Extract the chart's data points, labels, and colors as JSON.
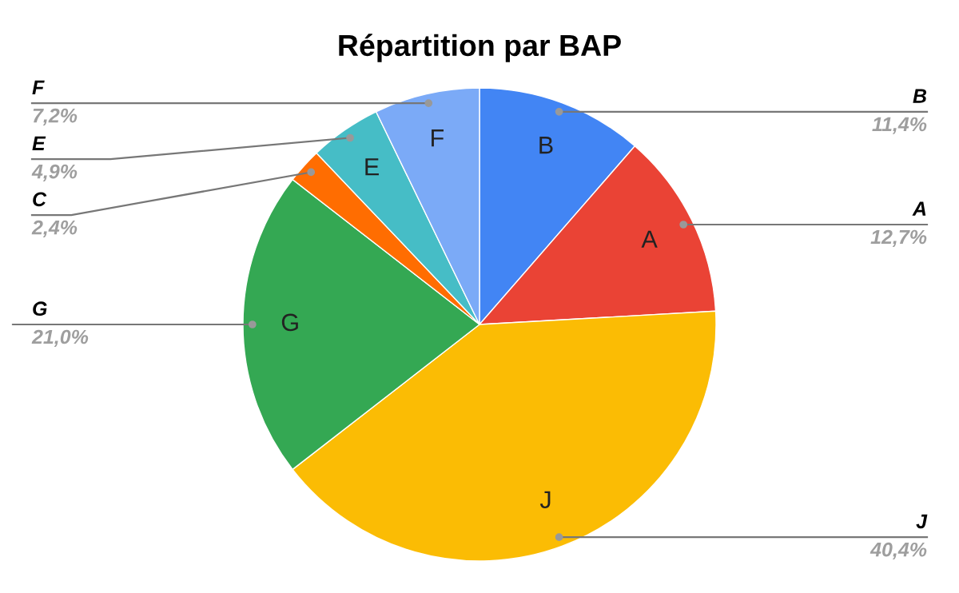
{
  "chart_data": {
    "type": "pie",
    "title": "Répartition par BAP",
    "categories": [
      "B",
      "A",
      "J",
      "G",
      "C",
      "E",
      "F"
    ],
    "values": [
      11.4,
      12.7,
      40.4,
      21.0,
      2.4,
      4.9,
      7.2
    ],
    "colors": [
      "#4285f4",
      "#ea4335",
      "#fbbc04",
      "#34a853",
      "#ff6d01",
      "#46bdc6",
      "#7baaf7"
    ],
    "value_labels": [
      "11,4%",
      "12,7%",
      "40,4%",
      "21,0%",
      "2,4%",
      "4,9%",
      "7,2%"
    ]
  }
}
